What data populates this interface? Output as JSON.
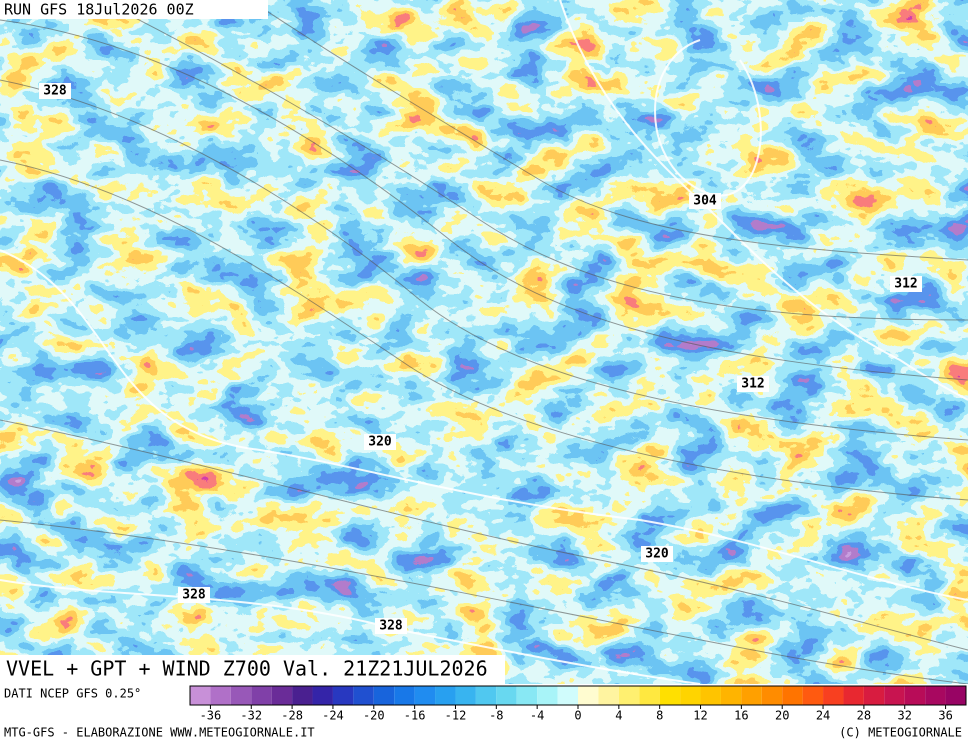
{
  "header": {
    "run": "RUN GFS 18Jul2026 00Z"
  },
  "contour_labels": [
    "328",
    "304",
    "312",
    "312",
    "320",
    "320",
    "328",
    "328"
  ],
  "map_title": "VVEL + GPT + WIND Z700 Val. 21Z21JUL2026",
  "footer": {
    "source": "DATI NCEP GFS 0.25°",
    "credit": "MTG-GFS - ELABORAZIONE WWW.METEOGIORNALE.IT",
    "copyright": "(C) METEOGIORNALE"
  },
  "colorbar": {
    "ticks": [
      -36,
      -32,
      -28,
      -24,
      -20,
      -16,
      -12,
      -8,
      -4,
      0,
      4,
      8,
      12,
      16,
      20,
      24,
      28,
      32,
      36
    ],
    "colors": [
      "#c890d8",
      "#b070c8",
      "#9858b8",
      "#8040a8",
      "#6a2c98",
      "#4a2090",
      "#3424a8",
      "#2838c0",
      "#2050d0",
      "#1864dc",
      "#1878e8",
      "#208cf0",
      "#28a0f0",
      "#38b4f0",
      "#50c8f0",
      "#68d8f0",
      "#88e8f4",
      "#a8f4f8",
      "#d0fcfc",
      "#fffcd0",
      "#fff4a0",
      "#fff070",
      "#ffe840",
      "#ffe000",
      "#ffd400",
      "#ffc400",
      "#ffb400",
      "#ffa000",
      "#ff8c00",
      "#ff7400",
      "#ff5a10",
      "#f84020",
      "#e82830",
      "#d81c40",
      "#c81450",
      "#b80c58",
      "#a80860",
      "#980464"
    ]
  }
}
